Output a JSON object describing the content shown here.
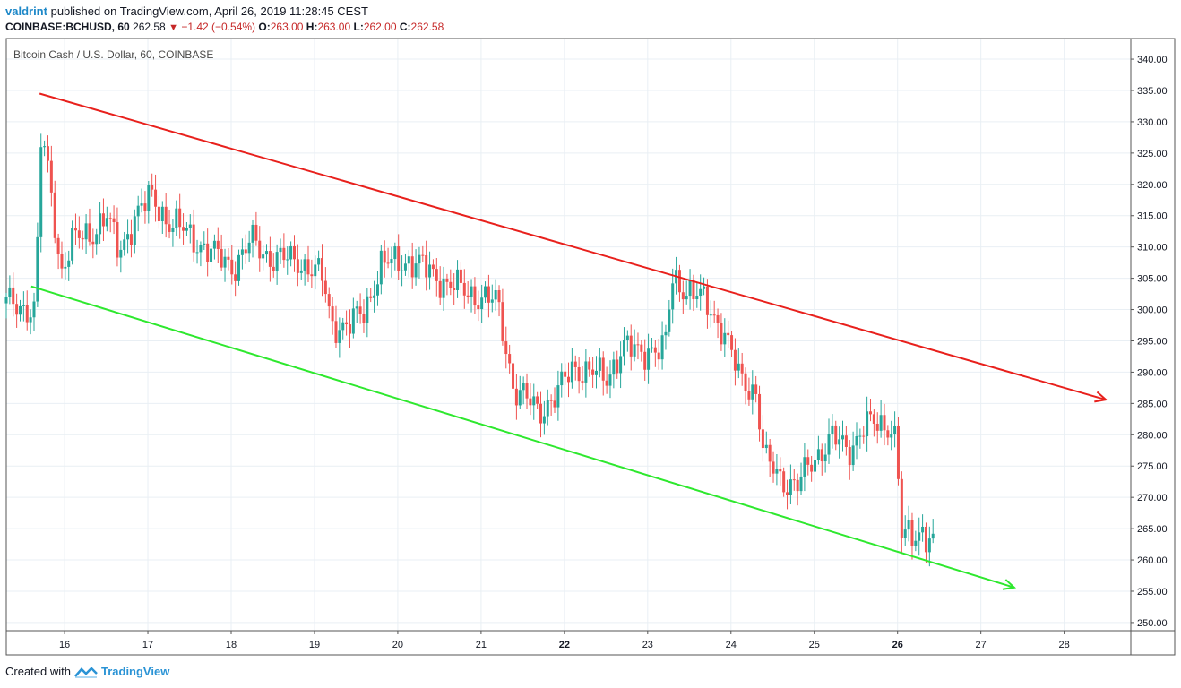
{
  "header": {
    "author": "valdrint",
    "published_text": "published on TradingView.com, April 26, 2019 11:28:45 CEST",
    "symbol": "COINBASE:BCHUSD, 60",
    "last_price": "262.58",
    "change": "−1.42 (−0.54%)",
    "open_label": "O:",
    "open_value": "263.00",
    "high_label": "H:",
    "high_value": "263.00",
    "low_label": "L:",
    "low_value": "262.00",
    "close_label": "C:",
    "close_value": "262.58"
  },
  "footer": {
    "created_with": "Created with",
    "brand": "TradingView"
  },
  "colors": {
    "up": "#26a69a",
    "down": "#ef5350",
    "upper_channel": "#e8201c",
    "lower_channel": "#2ee82e",
    "grid": "#e9eff4",
    "axis": "#555555"
  },
  "chart_data": {
    "type": "candlestick",
    "title": "Bitcoin Cash / U.S. Dollar, 60, COINBASE",
    "x_ticks": [
      "16",
      "17",
      "18",
      "19",
      "20",
      "21",
      "22",
      "23",
      "24",
      "25",
      "26",
      "27",
      "28"
    ],
    "bold_x_ticks": [
      "22",
      "26"
    ],
    "x_range_days": [
      15.3,
      28.8
    ],
    "y_ticks": [
      "340.00",
      "335.00",
      "330.00",
      "325.00",
      "320.00",
      "315.00",
      "310.00",
      "305.00",
      "300.00",
      "295.00",
      "290.00",
      "285.00",
      "280.00",
      "275.00",
      "270.00",
      "265.00",
      "260.00",
      "255.00",
      "250.00"
    ],
    "ylim": [
      248.7,
      343.3
    ],
    "grid": true,
    "price_path": [
      [
        15.3,
        301
      ],
      [
        15.65,
        300
      ],
      [
        15.72,
        328
      ],
      [
        15.85,
        318
      ],
      [
        15.95,
        306
      ],
      [
        16.1,
        311
      ],
      [
        16.3,
        312
      ],
      [
        16.5,
        315
      ],
      [
        16.65,
        309
      ],
      [
        16.85,
        315
      ],
      [
        17.05,
        318
      ],
      [
        17.25,
        314
      ],
      [
        17.5,
        312
      ],
      [
        17.75,
        309
      ],
      [
        18.05,
        307
      ],
      [
        18.25,
        311
      ],
      [
        18.5,
        308
      ],
      [
        18.8,
        308
      ],
      [
        19.1,
        305
      ],
      [
        19.2,
        298
      ],
      [
        19.4,
        297
      ],
      [
        19.6,
        300
      ],
      [
        19.8,
        307
      ],
      [
        20.1,
        308
      ],
      [
        20.4,
        306
      ],
      [
        20.6,
        304
      ],
      [
        20.8,
        303
      ],
      [
        21.0,
        302
      ],
      [
        21.2,
        301
      ],
      [
        21.4,
        287
      ],
      [
        21.7,
        284
      ],
      [
        21.9,
        286
      ],
      [
        22.1,
        291
      ],
      [
        22.3,
        290
      ],
      [
        22.5,
        289
      ],
      [
        22.7,
        294
      ],
      [
        22.9,
        293
      ],
      [
        23.05,
        294
      ],
      [
        23.2,
        293
      ],
      [
        23.3,
        305
      ],
      [
        23.5,
        303
      ],
      [
        23.7,
        301
      ],
      [
        23.9,
        297
      ],
      [
        24.1,
        289
      ],
      [
        24.3,
        287
      ],
      [
        24.4,
        276
      ],
      [
        24.6,
        273
      ],
      [
        24.8,
        272
      ],
      [
        25.0,
        276
      ],
      [
        25.2,
        280
      ],
      [
        25.4,
        277
      ],
      [
        25.6,
        282
      ],
      [
        25.8,
        281
      ],
      [
        25.95,
        282
      ],
      [
        26.0,
        276
      ],
      [
        26.05,
        264
      ],
      [
        26.2,
        263
      ],
      [
        26.3,
        265
      ],
      [
        26.45,
        263
      ]
    ],
    "trendlines": [
      {
        "name": "upper",
        "x": [
          15.7,
          28.5
        ],
        "y": [
          334.5,
          285.6
        ],
        "color": "#e8201c",
        "arrow": true
      },
      {
        "name": "lower",
        "x": [
          15.6,
          27.4
        ],
        "y": [
          303.7,
          255.6
        ],
        "color": "#2ee82e",
        "arrow": true
      }
    ]
  }
}
